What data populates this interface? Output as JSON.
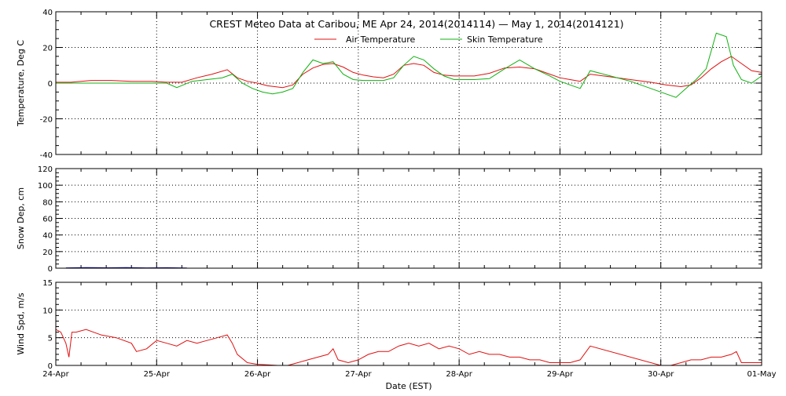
{
  "title": "CREST Meteo Data at Caribou, ME   Apr 24, 2014(2014114) — May  1, 2014(2014121)",
  "xlabel": "Date (EST)",
  "x_tick_labels": [
    "24-Apr",
    "25-Apr",
    "26-Apr",
    "27-Apr",
    "28-Apr",
    "29-Apr",
    "30-Apr",
    "01-May"
  ],
  "colors": {
    "air": "#e01010",
    "skin": "#10b010",
    "snow": "#0000a0",
    "wind": "#e01010",
    "axis": "#000000",
    "grid": "#000000"
  },
  "chart_data": [
    {
      "type": "line",
      "ylabel": "Temperature, Deg C",
      "xlim": [
        0,
        7
      ],
      "ylim": [
        -40,
        40
      ],
      "y_ticks": [
        -40,
        -20,
        0,
        20,
        40
      ],
      "grid": true,
      "legend_position": "top-center",
      "series": [
        {
          "name": "Air Temperature",
          "x": [
            0,
            0.15,
            0.35,
            0.55,
            0.75,
            0.95,
            1.1,
            1.25,
            1.4,
            1.55,
            1.7,
            1.8,
            1.9,
            2.0,
            2.1,
            2.25,
            2.35,
            2.45,
            2.55,
            2.65,
            2.75,
            2.85,
            2.95,
            3.05,
            3.15,
            3.25,
            3.35,
            3.45,
            3.55,
            3.65,
            3.75,
            3.85,
            3.95,
            4.05,
            4.15,
            4.3,
            4.45,
            4.6,
            4.75,
            4.9,
            5.0,
            5.1,
            5.2,
            5.3,
            5.5,
            5.7,
            5.9,
            6.05,
            6.2,
            6.3,
            6.4,
            6.5,
            6.6,
            6.7,
            6.8,
            6.9,
            7.0
          ],
          "y": [
            0.5,
            0.5,
            1.5,
            1.5,
            1.0,
            1.0,
            0.5,
            0.5,
            3.0,
            5.0,
            7.5,
            3.0,
            1.0,
            0.0,
            -1.5,
            -2.5,
            -1.0,
            5.0,
            8.5,
            10.5,
            11.0,
            9.0,
            6.0,
            4.5,
            3.5,
            3.0,
            5.0,
            10.0,
            11.0,
            10.0,
            6.0,
            4.5,
            4.0,
            4.0,
            4.0,
            5.5,
            8.5,
            9.0,
            8.0,
            5.0,
            3.0,
            2.0,
            1.0,
            5.0,
            3.5,
            2.0,
            0.5,
            -1.0,
            -2.0,
            -1.0,
            3.0,
            8.0,
            12.0,
            15.0,
            11.0,
            7.0,
            6.0
          ]
        },
        {
          "name": "Skin Temperature",
          "x": [
            0,
            0.3,
            0.6,
            0.9,
            1.1,
            1.2,
            1.35,
            1.5,
            1.65,
            1.75,
            1.85,
            1.95,
            2.05,
            2.15,
            2.25,
            2.35,
            2.45,
            2.55,
            2.65,
            2.75,
            2.85,
            2.95,
            3.05,
            3.15,
            3.25,
            3.35,
            3.45,
            3.55,
            3.65,
            3.75,
            3.85,
            3.95,
            4.05,
            4.15,
            4.3,
            4.45,
            4.6,
            4.75,
            4.9,
            5.0,
            5.1,
            5.2,
            5.3,
            5.5,
            5.7,
            5.9,
            6.05,
            6.15,
            6.25,
            6.35,
            6.45,
            6.55,
            6.65,
            6.72,
            6.8,
            6.9,
            7.0
          ],
          "y": [
            0.0,
            0.0,
            0.0,
            0.0,
            0.0,
            -2.5,
            1.0,
            2.0,
            3.0,
            5.0,
            0.0,
            -3.0,
            -5.0,
            -6.0,
            -5.0,
            -3.0,
            6.0,
            13.0,
            11.0,
            12.0,
            5.0,
            2.0,
            1.5,
            1.5,
            1.5,
            3.0,
            10.0,
            15.0,
            13.0,
            8.0,
            4.0,
            2.0,
            2.0,
            2.0,
            2.5,
            8.0,
            13.0,
            8.0,
            4.0,
            1.0,
            -1.0,
            -3.0,
            7.0,
            4.0,
            1.0,
            -3.0,
            -6.0,
            -8.0,
            -3.0,
            2.0,
            8.0,
            28.0,
            26.0,
            10.0,
            2.0,
            0.0,
            4.0
          ]
        }
      ]
    },
    {
      "type": "line",
      "ylabel": "Snow Dep, cm",
      "xlim": [
        0,
        7
      ],
      "ylim": [
        0,
        120
      ],
      "y_ticks": [
        0,
        20,
        40,
        60,
        80,
        100,
        120
      ],
      "grid": true,
      "series": [
        {
          "x": [
            0.1,
            0.3,
            0.5,
            0.7,
            0.9,
            1.1,
            1.3
          ],
          "y": [
            0.4,
            0.8,
            0.5,
            0.7,
            0.4,
            0.6,
            0.3
          ]
        }
      ]
    },
    {
      "type": "line",
      "ylabel": "Wind Spd, m/s",
      "xlim": [
        0,
        7
      ],
      "ylim": [
        0,
        15
      ],
      "y_ticks": [
        0,
        5,
        10,
        15
      ],
      "grid": true,
      "series": [
        {
          "x": [
            0,
            0.05,
            0.1,
            0.13,
            0.16,
            0.2,
            0.3,
            0.45,
            0.6,
            0.75,
            0.8,
            0.9,
            1.0,
            1.1,
            1.2,
            1.3,
            1.4,
            1.5,
            1.6,
            1.7,
            1.75,
            1.8,
            1.9,
            2.0,
            2.1,
            2.2,
            2.3,
            2.4,
            2.5,
            2.6,
            2.7,
            2.75,
            2.8,
            2.9,
            3.0,
            3.1,
            3.2,
            3.3,
            3.4,
            3.5,
            3.6,
            3.7,
            3.8,
            3.9,
            4.0,
            4.1,
            4.2,
            4.3,
            4.4,
            4.5,
            4.6,
            4.7,
            4.8,
            4.9,
            5.0,
            5.1,
            5.2,
            5.3,
            6.0,
            6.1,
            6.2,
            6.3,
            6.4,
            6.5,
            6.6,
            6.7,
            6.75,
            6.8,
            6.9,
            7.0
          ],
          "y": [
            6.5,
            6.0,
            4.0,
            1.5,
            6.0,
            6.0,
            6.5,
            5.5,
            5.0,
            4.0,
            2.5,
            3.0,
            4.5,
            4.0,
            3.5,
            4.5,
            4.0,
            4.5,
            5.0,
            5.5,
            4.0,
            2.0,
            0.5,
            0.2,
            0.1,
            0.0,
            0.0,
            0.5,
            1.0,
            1.5,
            2.0,
            3.0,
            1.0,
            0.5,
            1.0,
            2.0,
            2.5,
            2.5,
            3.5,
            4.0,
            3.5,
            4.0,
            3.0,
            3.5,
            3.0,
            2.0,
            2.5,
            2.0,
            2.0,
            1.5,
            1.5,
            1.0,
            1.0,
            0.5,
            0.5,
            0.5,
            1.0,
            3.5,
            0.0,
            0.0,
            0.5,
            1.0,
            1.0,
            1.5,
            1.5,
            2.0,
            2.5,
            0.5,
            0.5,
            0.5
          ]
        }
      ]
    }
  ]
}
